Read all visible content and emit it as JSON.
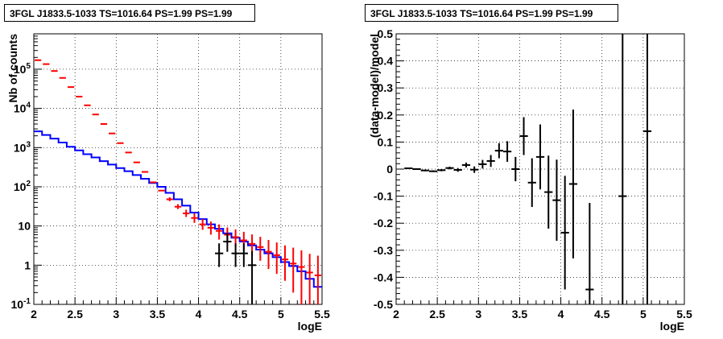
{
  "chart_data": [
    {
      "type": "histogram",
      "title": "3FGL J1833.5-1033 TS=1016.64 PS=1.99 PS=1.99",
      "xlabel": "logE",
      "ylabel": "Nb of counts",
      "xlim": [
        2,
        5.5
      ],
      "ylim": [
        0.1,
        800000
      ],
      "yscale": "log",
      "grid": true,
      "x_ticks": [
        "2",
        "2.5",
        "3",
        "3.5",
        "4",
        "4.5",
        "5",
        "5.5"
      ],
      "y_ticks": [
        "10^-1",
        "1",
        "10",
        "10^2",
        "10^3",
        "10^4",
        "10^5"
      ],
      "bin_edges": [
        2.0,
        2.1,
        2.2,
        2.3,
        2.4,
        2.5,
        2.6,
        2.7,
        2.8,
        2.9,
        3.0,
        3.1,
        3.2,
        3.3,
        3.4,
        3.5,
        3.6,
        3.7,
        3.8,
        3.9,
        4.0,
        4.1,
        4.2,
        4.3,
        4.4,
        4.5,
        4.6,
        4.7,
        4.8,
        4.9,
        5.0,
        5.1,
        5.2,
        5.3,
        5.4,
        5.5
      ],
      "series": [
        {
          "color": "#ff0000",
          "style": "errorbar",
          "values": [
            170000,
            135000,
            90000,
            60000,
            35000,
            20000,
            12000,
            7000,
            4000,
            2300,
            1300,
            750,
            420,
            240,
            130,
            80,
            48,
            31,
            21,
            16,
            11,
            9,
            7.5,
            6,
            5.2,
            4.3,
            3.5,
            2.9,
            2.2,
            1.8,
            1.4,
            1.1,
            0.9,
            0.65,
            0.55
          ],
          "errors_low": [
            0,
            0,
            0,
            0,
            0,
            0,
            0,
            0,
            0,
            0,
            0,
            0,
            0,
            0,
            0,
            0,
            5,
            4,
            4,
            4,
            3,
            3,
            3,
            2.5,
            2.3,
            2.0,
            1.8,
            1.6,
            1.4,
            1.2,
            1.0,
            0.9,
            0.8,
            0.6,
            0.5
          ],
          "errors_high": [
            0,
            0,
            0,
            0,
            0,
            0,
            0,
            0,
            0,
            0,
            0,
            0,
            0,
            0,
            0,
            0,
            6,
            5,
            5,
            5,
            4,
            4,
            3.5,
            3.2,
            3.0,
            2.8,
            2.6,
            2.4,
            2.2,
            2.0,
            1.8,
            1.7,
            1.5,
            1.3,
            1.2
          ]
        },
        {
          "color": "#0000ff",
          "style": "step",
          "values": [
            2600,
            2100,
            1700,
            1350,
            1050,
            850,
            680,
            560,
            450,
            370,
            300,
            250,
            200,
            160,
            125,
            100,
            70,
            48,
            33,
            22,
            15,
            11,
            8.5,
            6.5,
            5,
            4,
            3.2,
            2.5,
            2,
            1.6,
            1.2,
            0.95,
            0.7,
            0.45,
            0.28
          ]
        },
        {
          "color": "#000000",
          "style": "errorbar",
          "points": [
            {
              "x": 4.25,
              "y": 2,
              "ylo": 0.9,
              "yhi": 3.6
            },
            {
              "x": 4.35,
              "y": 4,
              "ylo": 2.2,
              "yhi": 6.5
            },
            {
              "x": 4.45,
              "y": 2,
              "ylo": 0.9,
              "yhi": 3.6
            },
            {
              "x": 4.55,
              "y": 2,
              "ylo": 0.9,
              "yhi": 3.6
            },
            {
              "x": 4.65,
              "y": 1,
              "ylo": 0.1,
              "yhi": 2.3
            }
          ]
        }
      ]
    },
    {
      "type": "scatter",
      "title": "3FGL J1833.5-1033 TS=1016.64 PS=1.99 PS=1.99",
      "xlabel": "logE",
      "ylabel": "(data-model)/model",
      "xlim": [
        2,
        5.5
      ],
      "ylim": [
        -0.5,
        0.5
      ],
      "grid": true,
      "x_ticks": [
        "2",
        "2.5",
        "3",
        "3.5",
        "4",
        "4.5",
        "5",
        "5.5"
      ],
      "y_ticks": [
        "-0.5",
        "-0.4",
        "-0.3",
        "-0.2",
        "-0.1",
        "0",
        "0.1",
        "0.2",
        "0.3",
        "0.4",
        "0.5"
      ],
      "points": [
        {
          "x": 2.15,
          "y": 0.003,
          "err": 0.002
        },
        {
          "x": 2.25,
          "y": 0.0,
          "err": 0.002
        },
        {
          "x": 2.35,
          "y": -0.005,
          "err": 0.003
        },
        {
          "x": 2.45,
          "y": -0.008,
          "err": 0.003
        },
        {
          "x": 2.55,
          "y": -0.004,
          "err": 0.004
        },
        {
          "x": 2.65,
          "y": 0.004,
          "err": 0.005
        },
        {
          "x": 2.75,
          "y": -0.003,
          "err": 0.007
        },
        {
          "x": 2.85,
          "y": 0.015,
          "err": 0.009
        },
        {
          "x": 2.95,
          "y": -0.002,
          "err": 0.012
        },
        {
          "x": 3.05,
          "y": 0.018,
          "err": 0.016
        },
        {
          "x": 3.15,
          "y": 0.03,
          "err": 0.022
        },
        {
          "x": 3.25,
          "y": 0.068,
          "err": 0.028
        },
        {
          "x": 3.35,
          "y": 0.065,
          "err": 0.038
        },
        {
          "x": 3.45,
          "y": 0.0,
          "err": 0.045
        },
        {
          "x": 3.55,
          "y": 0.122,
          "err": 0.07
        },
        {
          "x": 3.65,
          "y": -0.05,
          "err": 0.09
        },
        {
          "x": 3.75,
          "y": 0.045,
          "err": 0.12
        },
        {
          "x": 3.85,
          "y": -0.085,
          "err": 0.135
        },
        {
          "x": 3.95,
          "y": -0.115,
          "err": 0.15
        },
        {
          "x": 4.05,
          "y": -0.235,
          "err": 0.21
        },
        {
          "x": 4.15,
          "y": -0.055,
          "err": 0.275
        },
        {
          "x": 4.35,
          "y": -0.445,
          "err": 0.32
        },
        {
          "x": 4.75,
          "y": -0.1,
          "err": 0.9
        },
        {
          "x": 5.05,
          "y": 0.14,
          "err": 0.9
        }
      ]
    }
  ]
}
